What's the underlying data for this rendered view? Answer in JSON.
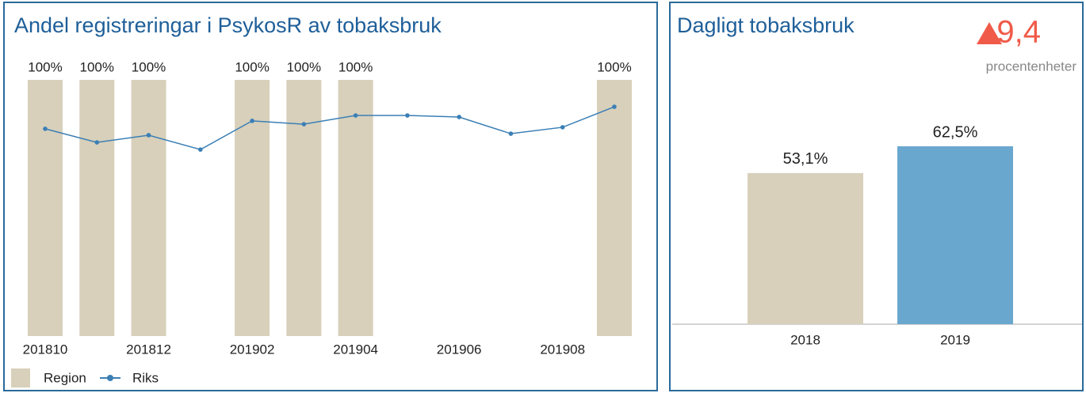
{
  "chart_data": [
    {
      "type": "combo",
      "title": "Andel registreringar i PsykosR av tobaksbruk",
      "categories": [
        "201810",
        null,
        "201812",
        null,
        "201902",
        null,
        "201904",
        null,
        "201906",
        null,
        "201908",
        null
      ],
      "ylim": [
        0,
        100
      ],
      "series": [
        {
          "name": "Region",
          "type": "bar",
          "color": "#d8d0bb",
          "values": [
            100,
            100,
            100,
            null,
            100,
            100,
            100,
            null,
            null,
            null,
            null,
            100
          ],
          "value_labels": [
            "100%",
            "100%",
            "100%",
            null,
            "100%",
            "100%",
            "100%",
            null,
            null,
            null,
            null,
            "100%"
          ]
        },
        {
          "name": "Riks",
          "type": "line",
          "color": "#3a7fb5",
          "values": [
            80.9,
            75.6,
            78.4,
            72.8,
            84,
            82.7,
            86.1,
            86.1,
            85.5,
            79,
            81.5,
            89.5
          ]
        }
      ]
    },
    {
      "type": "bar",
      "title": "Dagligt tobaksbruk",
      "annotation": {
        "change": {
          "value": 9.4,
          "label": "9,4"
        },
        "unit": "procentenheter",
        "color": "#f05a48"
      },
      "categories": [
        "2018",
        "2019"
      ],
      "values": [
        53.1,
        62.5
      ],
      "value_labels": [
        "53,1%",
        "62,5%"
      ],
      "colors": [
        "#d8d0bb",
        "#6aa7cf"
      ],
      "ylim": [
        0,
        100
      ]
    }
  ]
}
